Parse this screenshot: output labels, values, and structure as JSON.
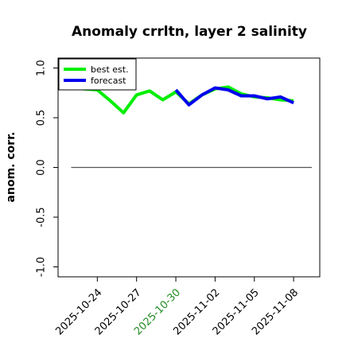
{
  "chart_data": {
    "type": "line",
    "title": "Anomaly crrltn, layer 2 salinity",
    "xlabel": "",
    "ylabel": "anom. corr.",
    "ylim": [
      -1.1,
      1.1
    ],
    "yticks": [
      -1.0,
      -0.5,
      0.0,
      0.5,
      1.0
    ],
    "ytick_labels": [
      "-1.0",
      "-0.5",
      "0.0",
      "0.5",
      "1.0"
    ],
    "xlim": [
      "2025-10-21",
      "2025-11-10"
    ],
    "xticks": [
      "2025-10-24",
      "2025-10-27",
      "2025-10-30",
      "2025-11-02",
      "2025-11-05",
      "2025-11-08"
    ],
    "xtick_colors": [
      "#000000",
      "#000000",
      "#228B22",
      "#000000",
      "#000000",
      "#000000"
    ],
    "reference_line": 0.0,
    "grid": false,
    "legend_position": "top-left",
    "series": [
      {
        "name": "best est.",
        "color": "#00ee00",
        "x": [
          "2025-10-22",
          "2025-10-23",
          "2025-10-24",
          "2025-10-25",
          "2025-10-26",
          "2025-10-27",
          "2025-10-28",
          "2025-10-29",
          "2025-10-30",
          "2025-10-31",
          "2025-11-01",
          "2025-11-02",
          "2025-11-03",
          "2025-11-04",
          "2025-11-05",
          "2025-11-06",
          "2025-11-07",
          "2025-11-08"
        ],
        "values": [
          0.8,
          0.79,
          0.78,
          0.67,
          0.55,
          0.73,
          0.77,
          0.68,
          0.76,
          0.64,
          0.73,
          0.79,
          0.81,
          0.74,
          0.71,
          0.7,
          0.68,
          0.67
        ]
      },
      {
        "name": "forecast",
        "color": "#0000ee",
        "x": [
          "2025-10-30",
          "2025-10-31",
          "2025-11-01",
          "2025-11-02",
          "2025-11-03",
          "2025-11-04",
          "2025-11-05",
          "2025-11-06",
          "2025-11-07",
          "2025-11-08"
        ],
        "values": [
          0.78,
          0.63,
          0.73,
          0.8,
          0.78,
          0.72,
          0.72,
          0.69,
          0.71,
          0.65
        ]
      }
    ]
  }
}
